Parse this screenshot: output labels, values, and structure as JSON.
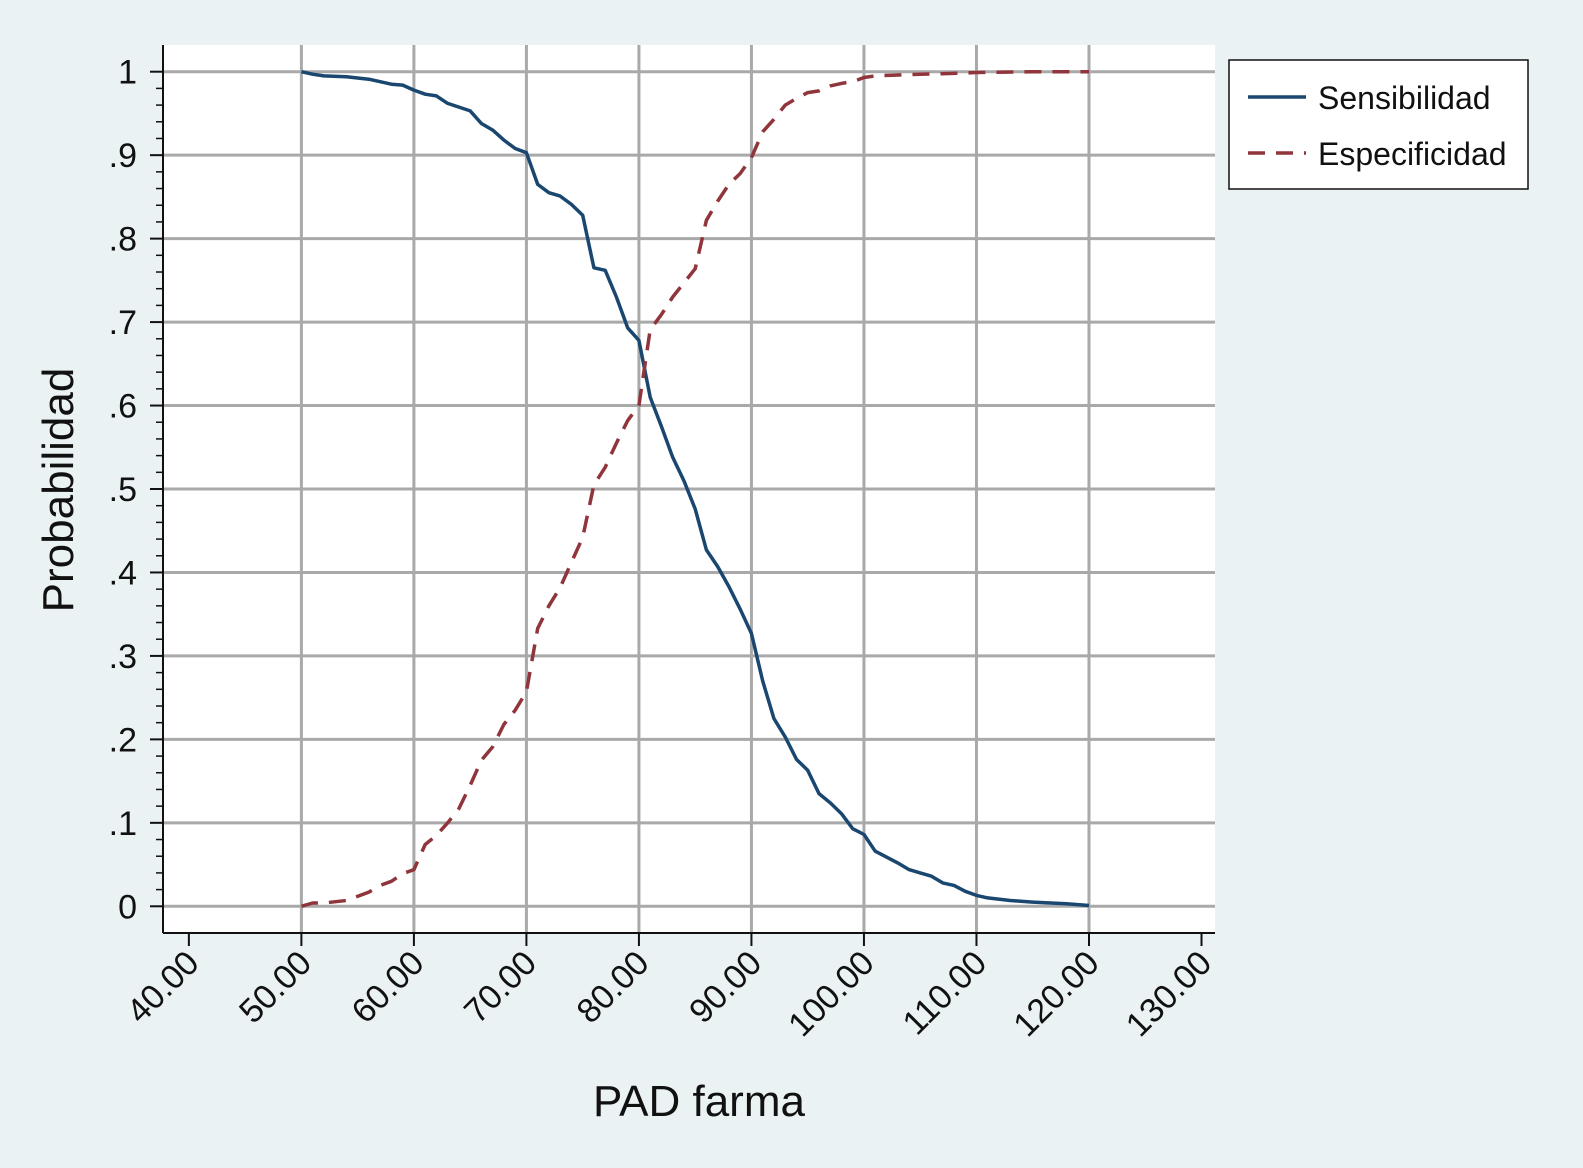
{
  "chart_data": {
    "type": "line",
    "xlabel": "PAD farma",
    "ylabel": "Probabilidad",
    "xlim": [
      37.7,
      131.2
    ],
    "ylim": [
      -0.032,
      1.032
    ],
    "x_ticks": [
      40,
      50,
      60,
      70,
      80,
      90,
      100,
      110,
      120,
      130
    ],
    "x_tick_labels": [
      "40.00",
      "50.00",
      "60.00",
      "70.00",
      "80.00",
      "90.00",
      "100.00",
      "110.00",
      "120.00",
      "130.00"
    ],
    "y_ticks": [
      0,
      0.1,
      0.2,
      0.3,
      0.4,
      0.5,
      0.6,
      0.7,
      0.8,
      0.9,
      1
    ],
    "y_tick_labels": [
      "0",
      ".1",
      ".2",
      ".3",
      ".4",
      ".5",
      ".6",
      ".7",
      ".8",
      ".9",
      "1"
    ],
    "grid_x": [
      50,
      60,
      70,
      80,
      90,
      100,
      110,
      120
    ],
    "grid_y": [
      0,
      0.1,
      0.2,
      0.3,
      0.4,
      0.5,
      0.6,
      0.7,
      0.8,
      0.9,
      1
    ],
    "grid": true,
    "legend_position": "right-top",
    "series": [
      {
        "name": "Sensibilidad",
        "color": "#1a476f",
        "dash": "solid",
        "x": [
          50,
          51,
          52,
          54,
          56,
          57,
          58,
          59,
          60,
          61,
          62,
          63,
          65,
          66,
          67,
          68,
          69,
          70,
          71,
          72,
          73,
          74,
          75,
          76,
          77,
          78,
          79,
          80,
          81,
          82,
          83,
          84,
          85,
          86,
          87,
          88,
          89,
          90,
          91,
          92,
          93,
          94,
          95,
          96,
          97,
          98,
          99,
          100,
          101,
          102,
          103,
          104,
          105,
          106,
          107,
          108,
          109,
          110,
          111,
          113,
          115,
          118,
          120
        ],
        "y": [
          1.0,
          0.997,
          0.995,
          0.994,
          0.991,
          0.988,
          0.985,
          0.984,
          0.978,
          0.973,
          0.971,
          0.962,
          0.953,
          0.938,
          0.93,
          0.918,
          0.908,
          0.903,
          0.865,
          0.855,
          0.851,
          0.841,
          0.828,
          0.765,
          0.762,
          0.73,
          0.693,
          0.678,
          0.61,
          0.575,
          0.538,
          0.51,
          0.476,
          0.427,
          0.407,
          0.383,
          0.356,
          0.327,
          0.27,
          0.225,
          0.203,
          0.176,
          0.163,
          0.135,
          0.124,
          0.111,
          0.093,
          0.086,
          0.066,
          0.059,
          0.052,
          0.044,
          0.04,
          0.036,
          0.028,
          0.025,
          0.018,
          0.013,
          0.01,
          0.007,
          0.005,
          0.003,
          0.001
        ]
      },
      {
        "name": "Especificidad",
        "color": "#90353b",
        "dash": "dashed",
        "x": [
          50,
          51,
          52,
          54,
          56,
          57,
          58,
          59,
          60,
          61,
          62,
          63,
          64,
          65,
          66,
          67,
          68,
          69,
          70,
          71,
          72,
          73,
          74,
          75,
          76,
          77,
          78,
          79,
          80,
          81,
          82,
          83,
          84,
          85,
          86,
          87,
          88,
          89,
          90,
          91,
          92,
          93,
          94,
          95,
          96,
          97,
          98,
          99,
          100,
          101,
          103,
          105,
          108,
          110,
          115,
          120
        ],
        "y": [
          0.0,
          0.004,
          0.004,
          0.007,
          0.017,
          0.025,
          0.03,
          0.039,
          0.044,
          0.074,
          0.085,
          0.1,
          0.117,
          0.145,
          0.175,
          0.191,
          0.218,
          0.235,
          0.257,
          0.333,
          0.36,
          0.382,
          0.412,
          0.442,
          0.505,
          0.526,
          0.555,
          0.582,
          0.6,
          0.691,
          0.709,
          0.73,
          0.747,
          0.764,
          0.822,
          0.845,
          0.865,
          0.878,
          0.897,
          0.928,
          0.943,
          0.96,
          0.968,
          0.975,
          0.977,
          0.983,
          0.986,
          0.988,
          0.993,
          0.995,
          0.996,
          0.997,
          0.998,
          0.999,
          1.0,
          1.0
        ]
      }
    ]
  }
}
